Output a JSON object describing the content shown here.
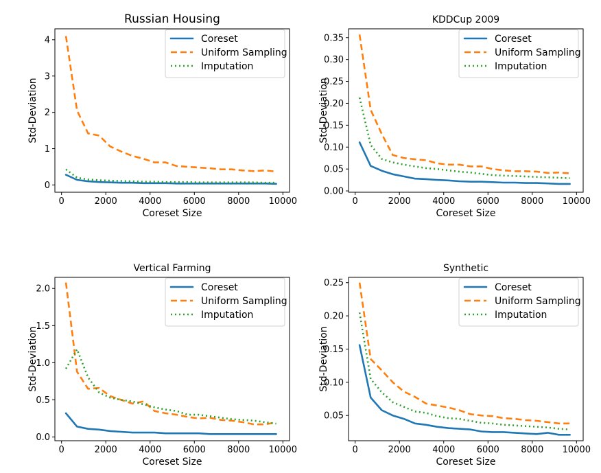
{
  "figure": {
    "background": "#ffffff"
  },
  "series_styles": [
    {
      "key": "coreset",
      "color": "#1f77b4",
      "dash": ""
    },
    {
      "key": "uniform",
      "color": "#ff7f0e",
      "dash": "9 5"
    },
    {
      "key": "imputation",
      "color": "#2ca02c",
      "dash": "2 4"
    }
  ],
  "chart_data": [
    {
      "type": "line",
      "title": "Russian Housing",
      "xlabel": "Coreset Size",
      "ylabel": "Std-Deviation",
      "xlim": [
        -300,
        10300
      ],
      "ylim": [
        -0.2,
        4.3
      ],
      "xticks": [
        0,
        2000,
        4000,
        6000,
        8000,
        10000
      ],
      "yticks": [
        0,
        1,
        2,
        3,
        4
      ],
      "ytick_labels": [
        "0",
        "1",
        "2",
        "3",
        "4"
      ],
      "legend": "top-right",
      "x": [
        200,
        700,
        1200,
        1700,
        2200,
        2700,
        3200,
        3700,
        4200,
        4700,
        5200,
        5700,
        6200,
        6700,
        7200,
        7700,
        8200,
        8700,
        9200,
        9700
      ],
      "series": [
        {
          "name": "Coreset",
          "values": [
            0.28,
            0.14,
            0.1,
            0.08,
            0.07,
            0.06,
            0.06,
            0.05,
            0.05,
            0.05,
            0.04,
            0.04,
            0.04,
            0.04,
            0.04,
            0.04,
            0.04,
            0.04,
            0.04,
            0.03
          ]
        },
        {
          "name": "Uniform Sampling",
          "values": [
            4.1,
            2.05,
            1.42,
            1.36,
            1.06,
            0.92,
            0.8,
            0.72,
            0.62,
            0.62,
            0.52,
            0.5,
            0.48,
            0.46,
            0.43,
            0.43,
            0.4,
            0.38,
            0.4,
            0.37
          ]
        },
        {
          "name": "Imputation",
          "values": [
            0.43,
            0.2,
            0.15,
            0.13,
            0.12,
            0.11,
            0.1,
            0.09,
            0.09,
            0.08,
            0.08,
            0.08,
            0.07,
            0.07,
            0.07,
            0.07,
            0.07,
            0.07,
            0.06,
            0.06
          ]
        }
      ]
    },
    {
      "type": "line",
      "title": "KDDCup 2009",
      "xlabel": "Coreset Size",
      "ylabel": "Std-Deviation",
      "xlim": [
        -300,
        10300
      ],
      "ylim": [
        -0.003,
        0.37
      ],
      "xticks": [
        0,
        2000,
        4000,
        6000,
        8000,
        10000
      ],
      "yticks": [
        0,
        0.05,
        0.1,
        0.15,
        0.2,
        0.25,
        0.3,
        0.35
      ],
      "ytick_labels": [
        "0.00",
        "0.05",
        "0.10",
        "0.15",
        "0.20",
        "0.25",
        "0.30",
        "0.35"
      ],
      "legend": "top-right",
      "x": [
        200,
        700,
        1200,
        1700,
        2200,
        2700,
        3200,
        3700,
        4200,
        4700,
        5200,
        5700,
        6200,
        6700,
        7200,
        7700,
        8200,
        8700,
        9200,
        9700
      ],
      "series": [
        {
          "name": "Coreset",
          "values": [
            0.111,
            0.057,
            0.046,
            0.038,
            0.033,
            0.028,
            0.027,
            0.025,
            0.024,
            0.022,
            0.021,
            0.021,
            0.02,
            0.019,
            0.019,
            0.018,
            0.018,
            0.017,
            0.016,
            0.016
          ]
        },
        {
          "name": "Uniform Sampling",
          "values": [
            0.357,
            0.185,
            0.13,
            0.082,
            0.075,
            0.072,
            0.07,
            0.063,
            0.06,
            0.06,
            0.056,
            0.056,
            0.05,
            0.047,
            0.045,
            0.045,
            0.044,
            0.041,
            0.042,
            0.04
          ]
        },
        {
          "name": "Imputation",
          "values": [
            0.213,
            0.105,
            0.073,
            0.065,
            0.06,
            0.056,
            0.052,
            0.05,
            0.047,
            0.044,
            0.042,
            0.039,
            0.036,
            0.035,
            0.034,
            0.033,
            0.032,
            0.031,
            0.03,
            0.029
          ]
        }
      ]
    },
    {
      "type": "line",
      "title": "Vertical Farming",
      "xlabel": "Coreset Size",
      "ylabel": "Std-Deviation",
      "xlim": [
        -300,
        10300
      ],
      "ylim": [
        -0.05,
        2.15
      ],
      "xticks": [
        0,
        2000,
        4000,
        6000,
        8000,
        10000
      ],
      "yticks": [
        0,
        0.5,
        1,
        1.5,
        2
      ],
      "ytick_labels": [
        "0.0",
        "0.5",
        "1.0",
        "1.5",
        "2.0"
      ],
      "legend": "top-right",
      "x": [
        200,
        700,
        1200,
        1700,
        2200,
        2700,
        3200,
        3700,
        4200,
        4700,
        5200,
        5700,
        6200,
        6700,
        7200,
        7700,
        8200,
        8700,
        9200,
        9700
      ],
      "series": [
        {
          "name": "Coreset",
          "values": [
            0.32,
            0.14,
            0.11,
            0.1,
            0.08,
            0.07,
            0.06,
            0.06,
            0.06,
            0.05,
            0.05,
            0.05,
            0.05,
            0.04,
            0.04,
            0.04,
            0.04,
            0.04,
            0.04,
            0.04
          ]
        },
        {
          "name": "Uniform Sampling",
          "values": [
            2.08,
            0.88,
            0.65,
            0.66,
            0.55,
            0.5,
            0.45,
            0.48,
            0.35,
            0.32,
            0.3,
            0.27,
            0.25,
            0.26,
            0.23,
            0.22,
            0.2,
            0.17,
            0.17,
            0.2
          ]
        },
        {
          "name": "Imputation",
          "values": [
            0.92,
            1.18,
            0.8,
            0.6,
            0.53,
            0.5,
            0.48,
            0.44,
            0.4,
            0.37,
            0.35,
            0.3,
            0.3,
            0.28,
            0.26,
            0.24,
            0.23,
            0.22,
            0.2,
            0.18
          ]
        }
      ]
    },
    {
      "type": "line",
      "title": "Synthetic",
      "xlabel": "Coreset Size",
      "ylabel": "Std-Deviation",
      "xlim": [
        -300,
        10300
      ],
      "ylim": [
        0.012,
        0.258
      ],
      "xticks": [
        0,
        2000,
        4000,
        6000,
        8000,
        10000
      ],
      "yticks": [
        0.05,
        0.1,
        0.15,
        0.2,
        0.25
      ],
      "ytick_labels": [
        "0.05",
        "0.10",
        "0.15",
        "0.20",
        "0.25"
      ],
      "legend": "top-right",
      "x": [
        200,
        700,
        1200,
        1700,
        2200,
        2700,
        3200,
        3700,
        4200,
        4700,
        5200,
        5700,
        6200,
        6700,
        7200,
        7700,
        8200,
        8700,
        9200,
        9700
      ],
      "series": [
        {
          "name": "Coreset",
          "values": [
            0.156,
            0.077,
            0.058,
            0.05,
            0.045,
            0.038,
            0.036,
            0.033,
            0.031,
            0.03,
            0.029,
            0.026,
            0.025,
            0.025,
            0.024,
            0.023,
            0.022,
            0.024,
            0.021,
            0.021
          ]
        },
        {
          "name": "Uniform Sampling",
          "values": [
            0.25,
            0.135,
            0.118,
            0.1,
            0.086,
            0.078,
            0.068,
            0.065,
            0.062,
            0.058,
            0.052,
            0.05,
            0.049,
            0.046,
            0.045,
            0.043,
            0.042,
            0.04,
            0.038,
            0.038
          ]
        },
        {
          "name": "Imputation",
          "values": [
            0.205,
            0.105,
            0.085,
            0.07,
            0.063,
            0.056,
            0.054,
            0.049,
            0.046,
            0.045,
            0.042,
            0.039,
            0.038,
            0.036,
            0.035,
            0.034,
            0.033,
            0.032,
            0.03,
            0.029
          ]
        }
      ]
    }
  ]
}
